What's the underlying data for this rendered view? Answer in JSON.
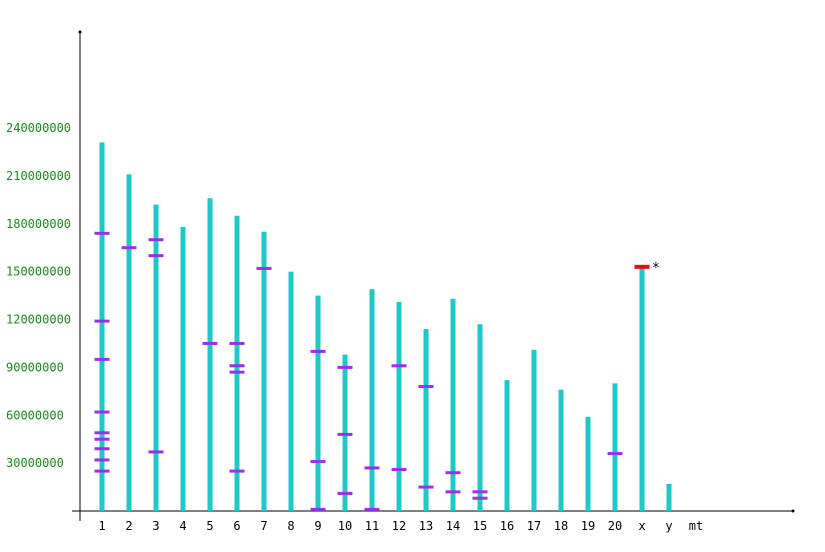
{
  "chart_data": {
    "type": "bar",
    "title": "",
    "xlabel": "",
    "ylabel": "",
    "ylim": [
      0,
      280000000
    ],
    "grid": false,
    "y_ticks": [
      30000000,
      60000000,
      90000000,
      120000000,
      150000000,
      180000000,
      210000000,
      240000000
    ],
    "categories": [
      "1",
      "2",
      "3",
      "4",
      "5",
      "6",
      "7",
      "8",
      "9",
      "10",
      "11",
      "12",
      "13",
      "14",
      "15",
      "16",
      "17",
      "18",
      "19",
      "20",
      "x",
      "y",
      "mt"
    ],
    "lengths": [
      231000000,
      211000000,
      192000000,
      178000000,
      196000000,
      185000000,
      175000000,
      150000000,
      135000000,
      98000000,
      139000000,
      131000000,
      114000000,
      133000000,
      117000000,
      82000000,
      101000000,
      76000000,
      59000000,
      80000000,
      152000000,
      17000000,
      0
    ],
    "markers": [
      {
        "chr": "1",
        "positions": [
          174000000,
          119000000,
          95000000,
          62000000,
          49000000,
          45000000,
          39000000,
          32000000,
          25000000
        ]
      },
      {
        "chr": "2",
        "positions": [
          165000000
        ]
      },
      {
        "chr": "3",
        "positions": [
          170000000,
          160000000,
          37000000
        ]
      },
      {
        "chr": "5",
        "positions": [
          105000000
        ]
      },
      {
        "chr": "6",
        "positions": [
          105000000,
          91000000,
          87000000,
          25000000
        ]
      },
      {
        "chr": "7",
        "positions": [
          152000000
        ]
      },
      {
        "chr": "9",
        "positions": [
          100000000,
          31000000,
          1000000
        ]
      },
      {
        "chr": "10",
        "positions": [
          90000000,
          48000000,
          11000000
        ]
      },
      {
        "chr": "11",
        "positions": [
          27000000,
          1000000
        ]
      },
      {
        "chr": "12",
        "positions": [
          91000000,
          26000000
        ]
      },
      {
        "chr": "13",
        "positions": [
          78000000,
          15000000
        ]
      },
      {
        "chr": "14",
        "positions": [
          24000000,
          12000000
        ]
      },
      {
        "chr": "15",
        "positions": [
          12000000,
          8000000
        ]
      },
      {
        "chr": "20",
        "positions": [
          36000000
        ]
      }
    ],
    "highlight": {
      "chr": "x",
      "position": 153000000,
      "label": "*",
      "color": "#e01010"
    },
    "colors": {
      "bar": "#1ec8c8",
      "marker": "#9b30e8",
      "ytick": "#1a8a1a",
      "axis": "#000000"
    }
  }
}
